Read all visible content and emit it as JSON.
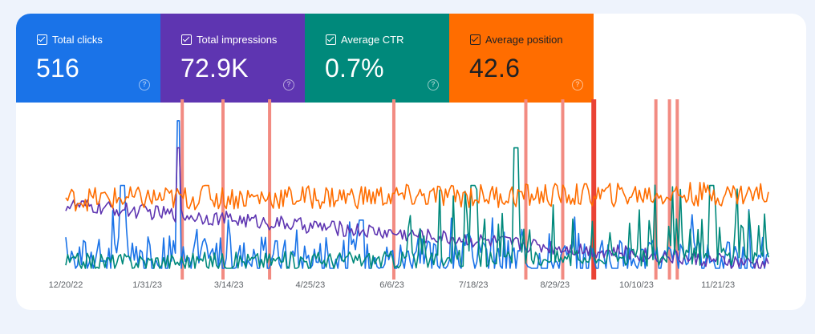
{
  "metrics": [
    {
      "label": "Total clicks",
      "value": "516",
      "color": "#1a73e8",
      "text_color": "#ffffff"
    },
    {
      "label": "Total impressions",
      "value": "72.9K",
      "color": "#5e35b1",
      "text_color": "#ffffff"
    },
    {
      "label": "Average CTR",
      "value": "0.7%",
      "color": "#00897b",
      "text_color": "#ffffff"
    },
    {
      "label": "Average position",
      "value": "42.6",
      "color": "#ff6d00",
      "text_color": "#202124"
    }
  ],
  "help_glyph": "?",
  "chart_data": {
    "type": "line",
    "x_ticks": [
      "12/20/22",
      "1/31/23",
      "3/14/23",
      "4/25/23",
      "6/6/23",
      "7/18/23",
      "8/29/23",
      "10/10/23",
      "11/21/23"
    ],
    "x_range": [
      "12/20/22",
      "12/17/23"
    ],
    "grid": false,
    "legend": "metric tiles above chart",
    "annotations": {
      "color": "#f28b82",
      "highlight_color": "#ea4335",
      "dates": [
        "2/18/23",
        "3/11/23",
        "4/4/23",
        "6/7/23",
        "8/14/23",
        "9/2/23",
        "10/20/23",
        "10/27/23",
        "10/31/23"
      ],
      "highlighted_dates": [
        "9/18/23"
      ]
    },
    "series": [
      {
        "name": "Total clicks",
        "color": "#1a73e8",
        "baseline": 0.08,
        "noise": 0.14,
        "spikes": [
          [
            0.16,
            0.98
          ],
          [
            0.08,
            0.55
          ],
          [
            0.42,
            0.32
          ]
        ],
        "trend_end": 0.05
      },
      {
        "name": "Total impressions",
        "color": "#5e35b1",
        "baseline": 0.42,
        "noise": 0.05,
        "spikes": [
          [
            0.16,
            0.8
          ]
        ],
        "trend_end": 0.02
      },
      {
        "name": "Average CTR",
        "color": "#00897b",
        "baseline": 0.04,
        "noise": 0.06,
        "spikes": [
          [
            0.64,
            0.8
          ],
          [
            0.58,
            0.55
          ],
          [
            0.92,
            0.55
          ]
        ],
        "trend_end": 0.08
      },
      {
        "name": "Average position",
        "color": "#ff6d00",
        "baseline": 0.46,
        "noise": 0.08,
        "spikes": [
          [
            0.2,
            0.55
          ]
        ],
        "trend_end": 0.55
      }
    ]
  }
}
